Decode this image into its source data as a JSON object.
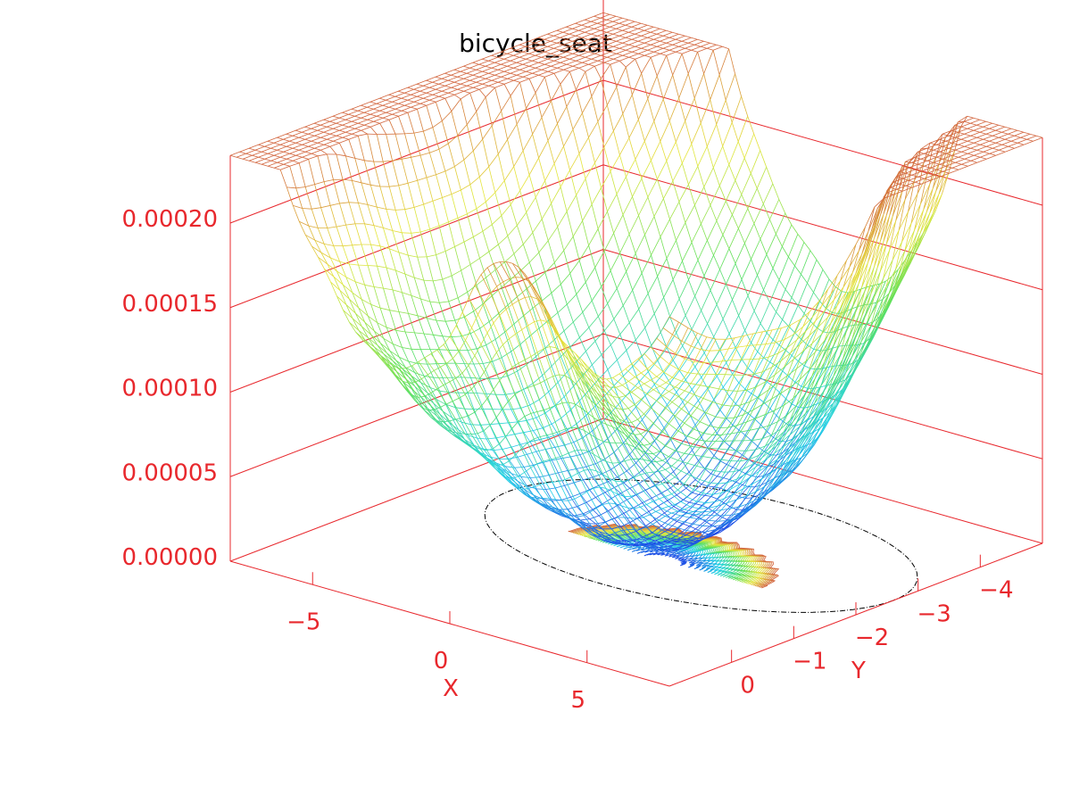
{
  "chart_data": {
    "type": "surface3d",
    "title": "bicycle_seat",
    "xlabel": "X",
    "ylabel": "Y",
    "zlabel": "",
    "xlim": [
      -8,
      8
    ],
    "ylim": [
      -5,
      1
    ],
    "zlim": [
      0,
      0.0002
    ],
    "x_ticks": [
      -5,
      0,
      5
    ],
    "x_tick_labels": [
      "−5",
      "0",
      "5"
    ],
    "y_ticks": [
      -4,
      -3,
      -2,
      -1,
      0
    ],
    "y_tick_labels": [
      "−4",
      "−3",
      "−2",
      "−1",
      "0"
    ],
    "z_ticks": [
      0,
      5e-05,
      0.0001,
      0.00015,
      0.0002
    ],
    "z_tick_labels": [
      "0.00000",
      "0.00005",
      "0.00010",
      "0.00015",
      "0.00020"
    ],
    "surface": {
      "style": "mesh",
      "min_value": 1e-05,
      "max_value": 0.00024,
      "peaks": [
        {
          "x": 2,
          "y": 1,
          "z": 0.00024
        },
        {
          "x": 8,
          "y": -4,
          "z": 0.00022
        },
        {
          "x": -8,
          "y": 0,
          "z": 0.00016
        }
      ],
      "minimum": {
        "x": 1,
        "y": -2,
        "z": 1e-05
      }
    },
    "contour_projection": true,
    "boundary_projection": true,
    "colormap": [
      "#1e3ee6",
      "#24d2e6",
      "#5ce05c",
      "#e6e63c",
      "#d2643c"
    ],
    "axis_color": "#e8282d",
    "background": "#ffffff"
  }
}
